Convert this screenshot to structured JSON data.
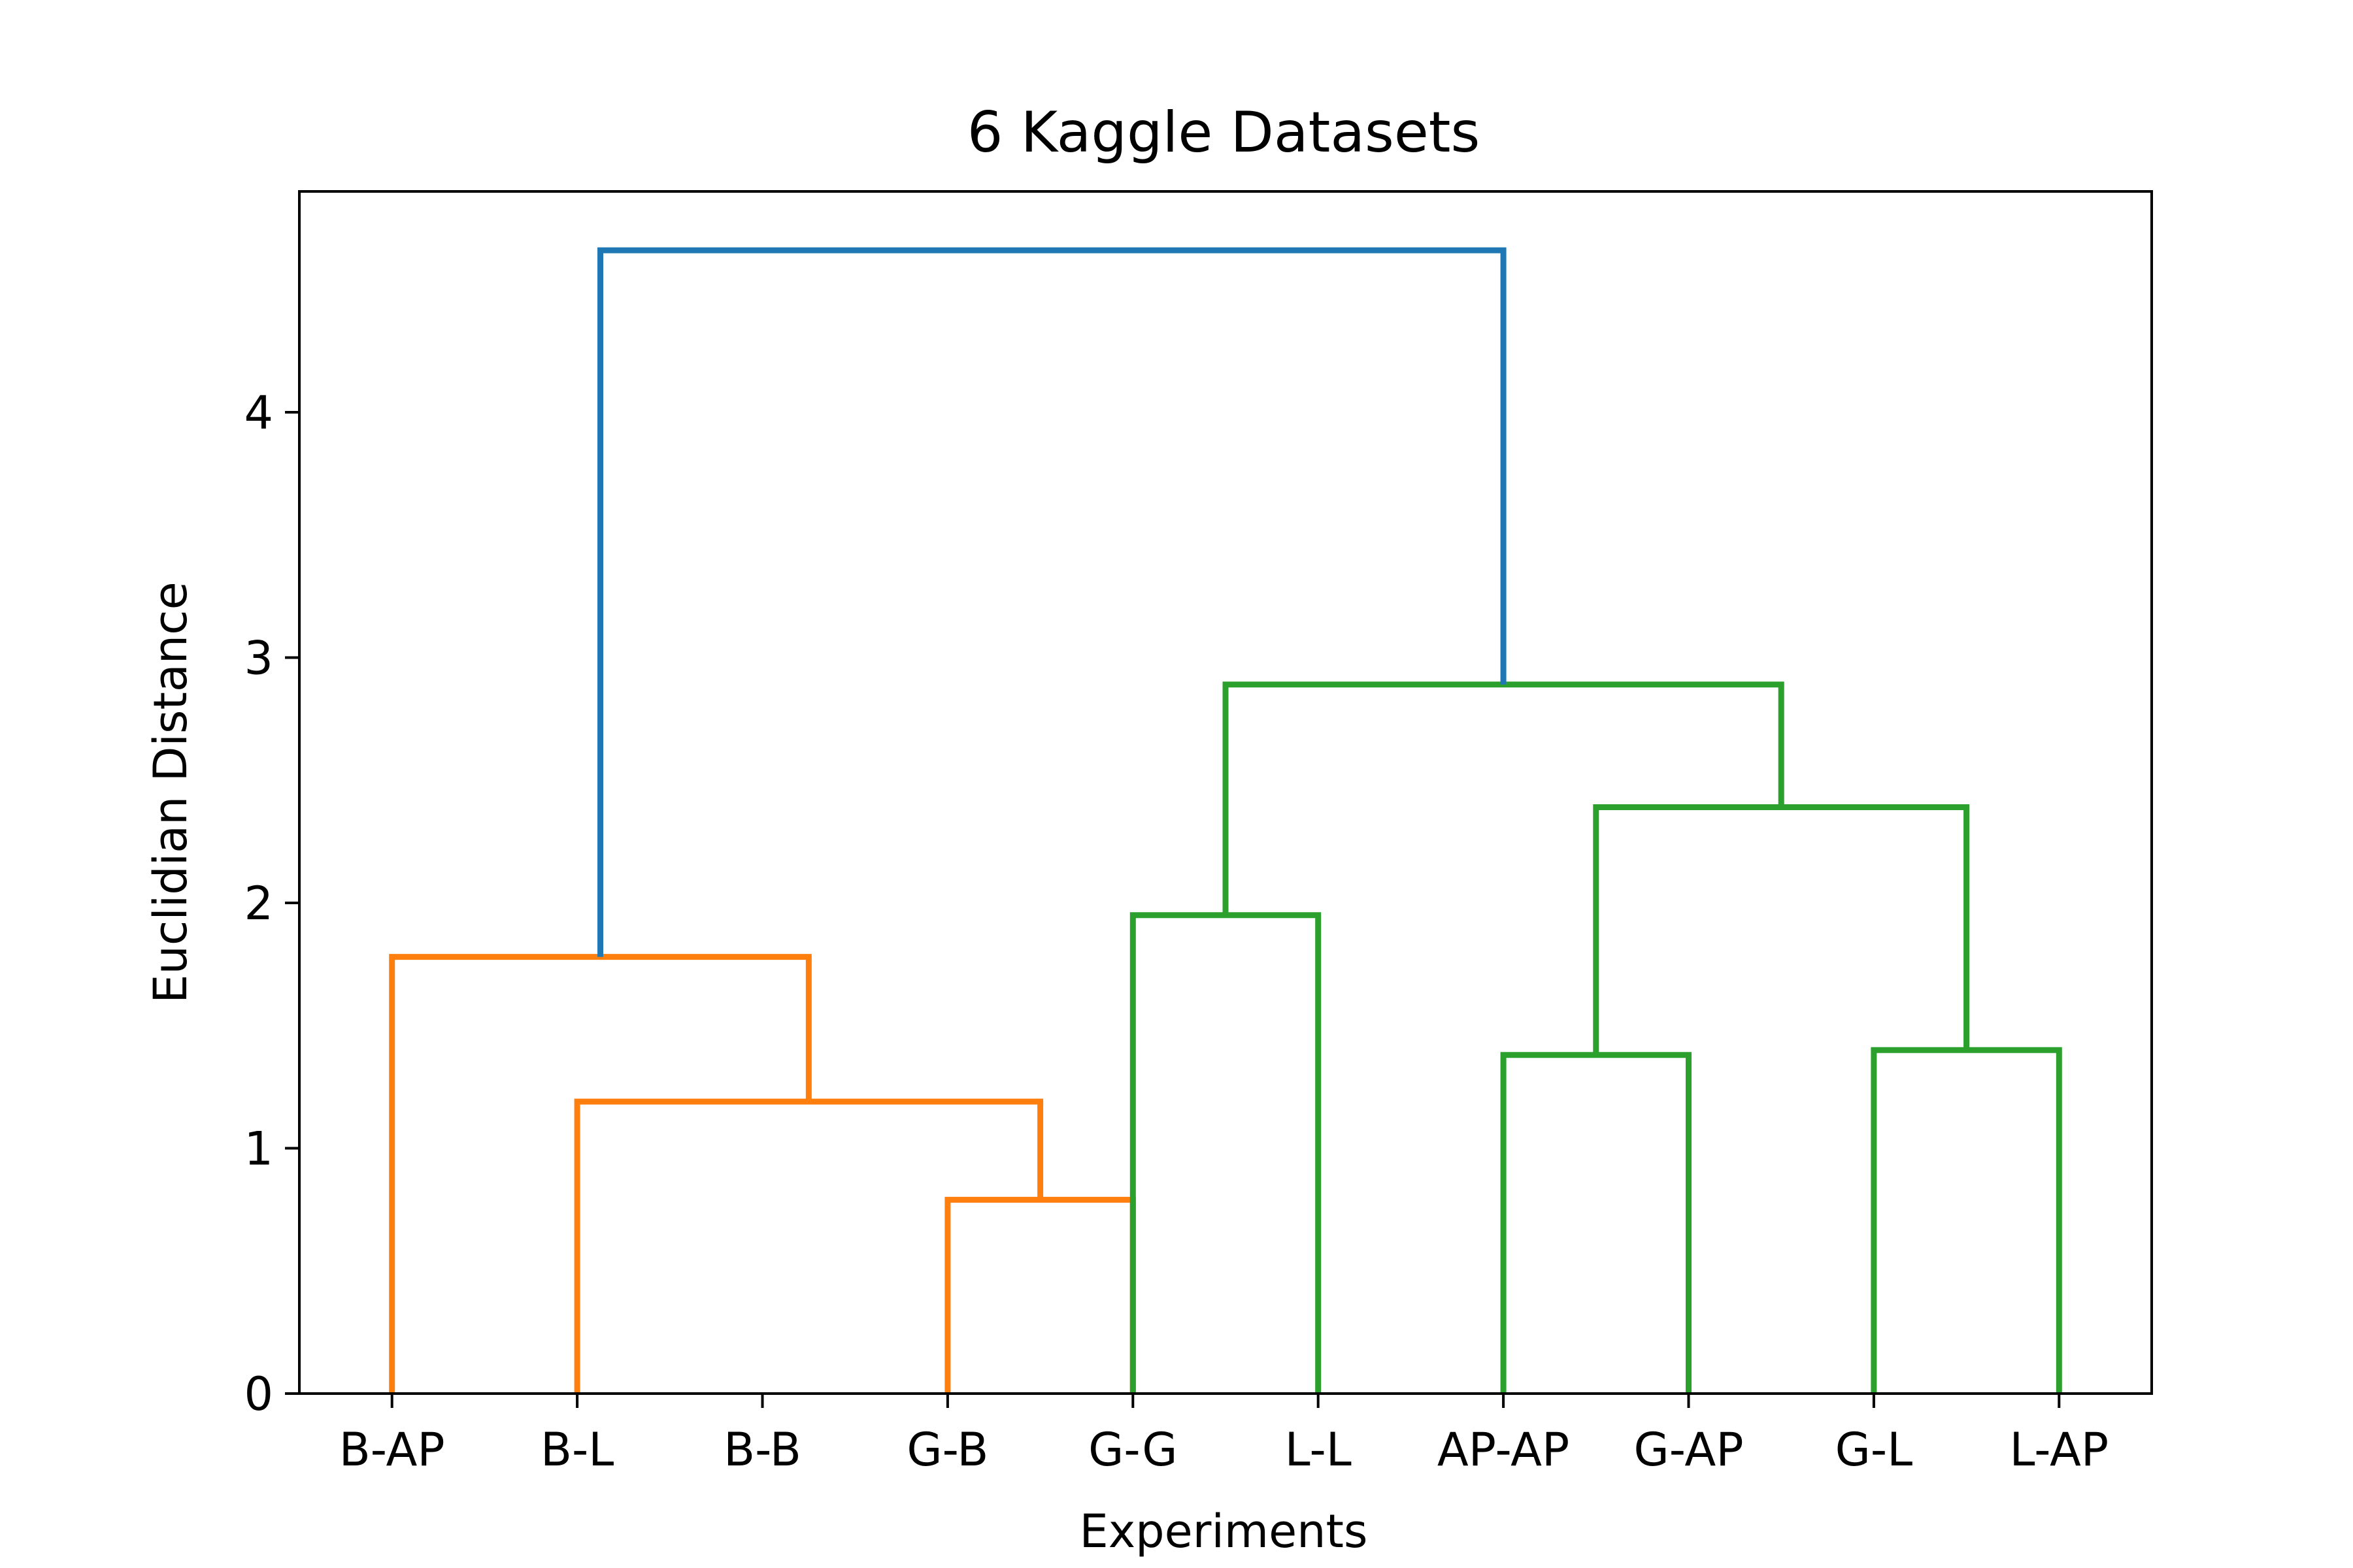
{
  "chart_data": {
    "type": "dendrogram",
    "title": "6 Kaggle Datasets",
    "xlabel": "Experiments",
    "ylabel": "Euclidian Distance",
    "ylim": [
      0,
      4.9
    ],
    "yticks": [
      0,
      1,
      2,
      3,
      4
    ],
    "grid": false,
    "leaves": [
      "B-AP",
      "B-L",
      "B-B",
      "G-B",
      "G-G",
      "L-L",
      "AP-AP",
      "G-AP",
      "G-L",
      "L-AP"
    ],
    "merges": [
      {
        "left": "B-B",
        "right": "G-B",
        "height": 0.79,
        "color": "#ff7f0e"
      },
      {
        "left": "B-L",
        "right": "B-B+G-B",
        "height": 1.19,
        "color": "#ff7f0e"
      },
      {
        "left": "B-AP",
        "right": "B-L+B-B+G-B",
        "height": 1.78,
        "color": "#ff7f0e"
      },
      {
        "left": "G-G",
        "right": "L-L",
        "height": 1.95,
        "color": "#2ca02c"
      },
      {
        "left": "AP-AP",
        "right": "G-AP",
        "height": 1.38,
        "color": "#2ca02c"
      },
      {
        "left": "G-L",
        "right": "L-AP",
        "height": 1.4,
        "color": "#2ca02c"
      },
      {
        "left": "AP-AP+G-AP",
        "right": "G-L+L-AP",
        "height": 2.39,
        "color": "#2ca02c"
      },
      {
        "left": "G-G+L-L",
        "right": "AP-AP+G-AP+G-L+L-AP",
        "height": 2.89,
        "color": "#2ca02c"
      },
      {
        "left": "orange-cluster",
        "right": "green-cluster",
        "height": 4.66,
        "color": "#1f77b4"
      }
    ],
    "links": [
      {
        "x1": 4,
        "x2": 5,
        "y_left": 0,
        "y_right": 0,
        "height": 0.79,
        "color": "#ff7f0e"
      },
      {
        "x1": 2,
        "x2": 4.5,
        "y_left": 0,
        "y_right": 0.79,
        "height": 1.19,
        "color": "#ff7f0e"
      },
      {
        "x1": 1,
        "x2": 3.25,
        "y_left": 0,
        "y_right": 1.19,
        "height": 1.78,
        "color": "#ff7f0e"
      },
      {
        "x1": 5,
        "x2": 6,
        "y_left": 0,
        "y_right": 0,
        "height": 1.95,
        "color": "#2ca02c"
      },
      {
        "x1": 7,
        "x2": 8,
        "y_left": 0,
        "y_right": 0,
        "height": 1.38,
        "color": "#2ca02c"
      },
      {
        "x1": 9,
        "x2": 10,
        "y_left": 0,
        "y_right": 0,
        "height": 1.4,
        "color": "#2ca02c"
      },
      {
        "x1": 7.5,
        "x2": 9.5,
        "y_left": 1.38,
        "y_right": 1.4,
        "height": 2.39,
        "color": "#2ca02c"
      },
      {
        "x1": 5.5,
        "x2": 8.5,
        "y_left": 1.95,
        "y_right": 2.39,
        "height": 2.89,
        "color": "#2ca02c"
      },
      {
        "x1": 2.125,
        "x2": 7,
        "y_left": 1.78,
        "y_right": 2.89,
        "height": 4.66,
        "color": "#1f77b4"
      }
    ]
  }
}
